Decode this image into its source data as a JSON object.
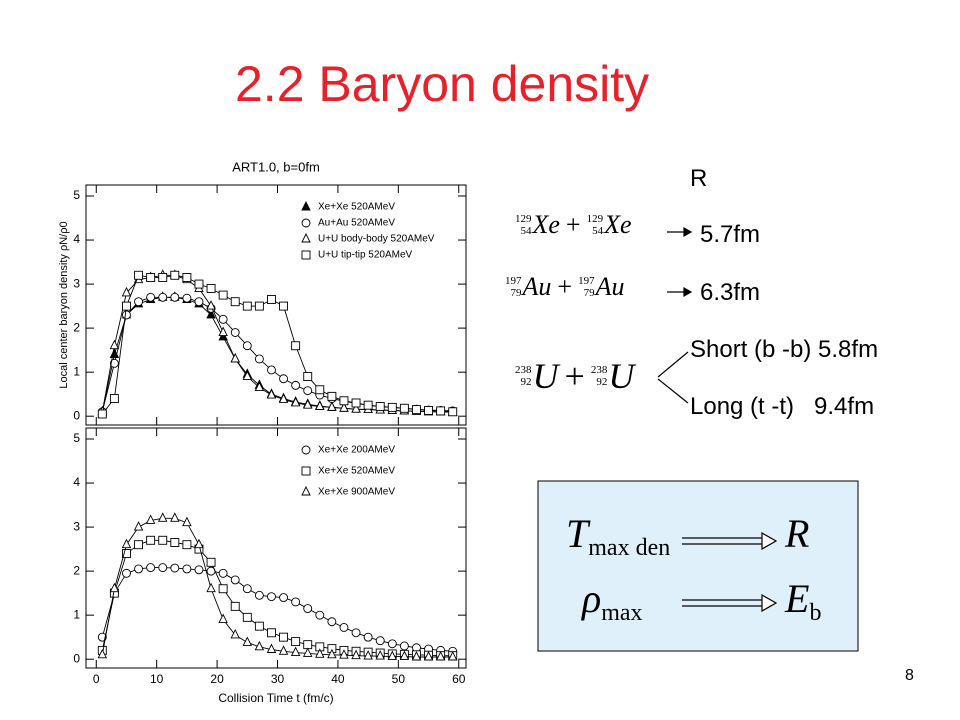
{
  "title": "2.2 Baryon density",
  "page_number": "8",
  "chart_data": [
    {
      "type": "line",
      "title": "ART1.0, b=0fm",
      "ylabel": "Local center baryon density ρN/ρ0",
      "x": [
        1,
        3,
        5,
        7,
        9,
        11,
        13,
        15,
        17,
        19,
        21,
        23,
        25,
        27,
        29,
        31,
        33,
        35,
        37,
        39,
        41,
        43,
        45,
        47,
        49,
        51,
        53,
        55,
        57,
        59
      ],
      "series": [
        {
          "name": "Xe+Xe 520AMeV",
          "color": "#000000",
          "marker": "triangle-filled",
          "values": [
            0.1,
            1.4,
            2.3,
            2.55,
            2.65,
            2.7,
            2.7,
            2.65,
            2.55,
            2.3,
            1.8,
            1.3,
            0.95,
            0.7,
            0.5,
            0.4,
            0.32,
            0.27,
            0.23,
            0.2,
            0.18,
            0.16,
            0.15,
            0.14,
            0.13,
            0.12,
            0.11,
            0.1,
            0.1,
            0.09
          ]
        },
        {
          "name": "Au+Au 520AMeV",
          "color": "#000000",
          "marker": "circle",
          "values": [
            0.1,
            1.2,
            2.3,
            2.6,
            2.7,
            2.7,
            2.7,
            2.68,
            2.6,
            2.45,
            2.2,
            1.9,
            1.6,
            1.3,
            1.05,
            0.85,
            0.7,
            0.58,
            0.48,
            0.4,
            0.34,
            0.29,
            0.25,
            0.22,
            0.2,
            0.18,
            0.16,
            0.14,
            0.13,
            0.12
          ]
        },
        {
          "name": "U+U body-body 520AMeV",
          "color": "#000000",
          "marker": "triangle",
          "values": [
            0.1,
            1.6,
            2.8,
            3.1,
            3.15,
            3.2,
            3.2,
            3.1,
            2.9,
            2.5,
            1.9,
            1.3,
            0.9,
            0.65,
            0.48,
            0.38,
            0.3,
            0.25,
            0.22,
            0.2,
            0.18,
            0.16,
            0.15,
            0.14,
            0.13,
            0.12,
            0.11,
            0.1,
            0.1,
            0.09
          ]
        },
        {
          "name": "U+U tip-tip 520AMeV",
          "color": "#000000",
          "marker": "square",
          "values": [
            0.05,
            0.4,
            2.5,
            3.2,
            3.15,
            3.15,
            3.2,
            3.15,
            3.0,
            2.9,
            2.75,
            2.6,
            2.5,
            2.5,
            2.65,
            2.5,
            1.6,
            0.9,
            0.6,
            0.45,
            0.35,
            0.3,
            0.25,
            0.22,
            0.2,
            0.18,
            0.15,
            0.13,
            0.12,
            0.1
          ]
        }
      ],
      "xlim": [
        -1.7,
        61.2
      ],
      "ylim": [
        -0.2,
        5.25
      ],
      "xticks": [
        0,
        10,
        20,
        30,
        40,
        50,
        60
      ],
      "yticks": [
        0,
        1,
        2,
        3,
        4,
        5
      ],
      "xtick_labels": false,
      "legend": "upper right"
    },
    {
      "type": "line",
      "xlabel": "Collision Time t (fm/c)",
      "x": [
        1,
        3,
        5,
        7,
        9,
        11,
        13,
        15,
        17,
        19,
        21,
        23,
        25,
        27,
        29,
        31,
        33,
        35,
        37,
        39,
        41,
        43,
        45,
        47,
        49,
        51,
        53,
        55,
        57,
        59
      ],
      "series": [
        {
          "name": "Xe+Xe 200AMeV",
          "color": "#000000",
          "marker": "circle",
          "values": [
            0.5,
            1.5,
            1.95,
            2.05,
            2.08,
            2.08,
            2.07,
            2.05,
            2.03,
            2.0,
            1.95,
            1.8,
            1.6,
            1.45,
            1.42,
            1.4,
            1.3,
            1.15,
            1.0,
            0.85,
            0.72,
            0.6,
            0.5,
            0.42,
            0.35,
            0.3,
            0.26,
            0.23,
            0.2,
            0.18
          ]
        },
        {
          "name": "Xe+Xe 520AMeV",
          "color": "#000000",
          "marker": "square",
          "values": [
            0.2,
            1.5,
            2.4,
            2.6,
            2.7,
            2.7,
            2.65,
            2.6,
            2.5,
            2.2,
            1.6,
            1.2,
            0.95,
            0.75,
            0.6,
            0.5,
            0.4,
            0.33,
            0.28,
            0.24,
            0.2,
            0.18,
            0.16,
            0.14,
            0.12,
            0.11,
            0.1,
            0.09,
            0.08,
            0.08
          ]
        },
        {
          "name": "Xe+Xe 900AMeV",
          "color": "#000000",
          "marker": "triangle",
          "values": [
            0.1,
            1.6,
            2.6,
            3.0,
            3.15,
            3.2,
            3.2,
            3.1,
            2.6,
            1.6,
            0.9,
            0.55,
            0.38,
            0.28,
            0.22,
            0.18,
            0.15,
            0.13,
            0.11,
            0.1,
            0.09,
            0.08,
            0.07,
            0.07,
            0.06,
            0.06,
            0.05,
            0.05,
            0.05,
            0.05
          ]
        }
      ],
      "xlim": [
        -1.7,
        61.2
      ],
      "ylim": [
        -0.2,
        5.25
      ],
      "xticks": [
        0,
        10,
        20,
        30,
        40,
        50,
        60
      ],
      "yticks": [
        0,
        1,
        2,
        3,
        4,
        5
      ],
      "xtick_labels": true,
      "legend": "upper right"
    }
  ],
  "radius": {
    "header": "R",
    "reactions": [
      {
        "terms": [
          {
            "mass": "129",
            "charge": "54",
            "symbol": "Xe"
          },
          {
            "mass": "129",
            "charge": "54",
            "symbol": "Xe"
          }
        ],
        "operator": "+",
        "results": [
          "5.7fm"
        ]
      },
      {
        "terms": [
          {
            "mass": "197",
            "charge": "79",
            "symbol": "Au"
          },
          {
            "mass": "197",
            "charge": "79",
            "symbol": "Au"
          }
        ],
        "operator": "+",
        "results": [
          "6.3fm"
        ]
      },
      {
        "terms": [
          {
            "mass": "238",
            "charge": "92",
            "symbol": "U"
          },
          {
            "mass": "238",
            "charge": "92",
            "symbol": "U"
          }
        ],
        "operator": "+",
        "results": [
          "Short (b -b) 5.8fm",
          "Long (t -t)   9.4fm"
        ]
      }
    ]
  },
  "box": {
    "rows": [
      {
        "symbol": "T",
        "subscript": "max den",
        "target": "R",
        "target_subscript": null
      },
      {
        "symbol": "ρ",
        "subscript": "max",
        "target": "E",
        "target_subscript": "b"
      }
    ]
  }
}
